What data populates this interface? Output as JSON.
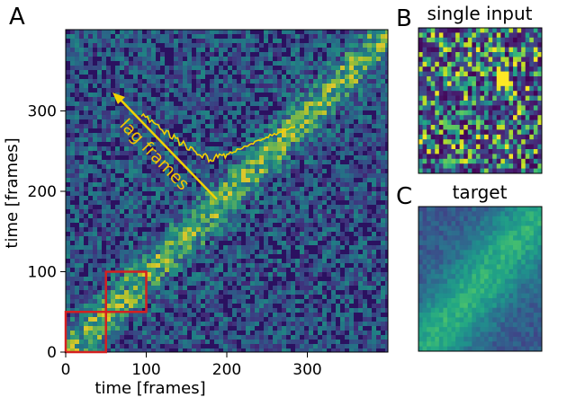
{
  "panels": {
    "a": {
      "letter": "A",
      "xlabel": "time [frames]",
      "ylabel": "time [frames]",
      "x_ticks": [
        "0",
        "100",
        "200",
        "300"
      ],
      "y_ticks": [
        "0",
        "100",
        "200",
        "300"
      ],
      "annotation": "lag frames",
      "colors": {
        "background": "#2b1160",
        "diagonal": "#a8dd3a",
        "annotation": "#f2d200",
        "boxes": "#d42020"
      },
      "boxes_frames": [
        {
          "from": 0,
          "to": 50
        },
        {
          "from": 50,
          "to": 100
        }
      ]
    },
    "b": {
      "letter": "B",
      "title": "single input"
    },
    "c": {
      "letter": "C",
      "title": "target"
    }
  }
}
